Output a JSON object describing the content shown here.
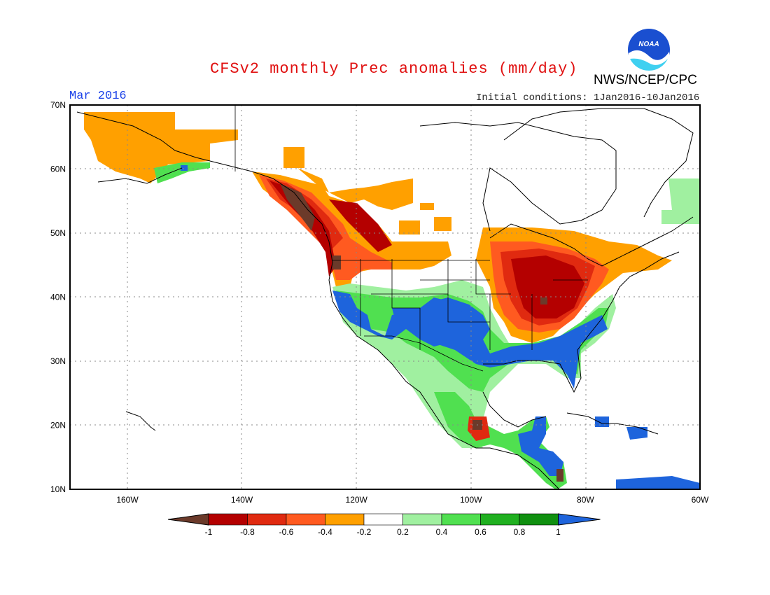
{
  "header": {
    "title": "CFSv2 monthly Prec anomalies (mm/day)",
    "agency": "NWS/NCEP/CPC",
    "month": "Mar 2016",
    "initial_conditions": "Initial conditions: 1Jan2016-10Jan2016",
    "logo_text": "NOAA"
  },
  "axes": {
    "lat_labels": [
      "70N",
      "60N",
      "50N",
      "40N",
      "30N",
      "20N",
      "10N"
    ],
    "lon_labels": [
      "160W",
      "140W",
      "120W",
      "100W",
      "80W",
      "60W"
    ]
  },
  "colorbar": {
    "labels": [
      "-1",
      "-0.8",
      "-0.6",
      "-0.4",
      "-0.2",
      "0.2",
      "0.4",
      "0.6",
      "0.8",
      "1"
    ],
    "colors": [
      "#6b3a2a",
      "#b40000",
      "#e02a10",
      "#ff5a20",
      "#ffa000",
      "#ffffff",
      "#a0f0a0",
      "#50e050",
      "#20b020",
      "#109010",
      "#1e64dc"
    ]
  },
  "map_regions": [
    {
      "name": "alaska-dry",
      "color": "#ffa000"
    },
    {
      "name": "pacific-nw-very-dry",
      "color": "#6b3a2a"
    },
    {
      "name": "great-lakes-dry",
      "color": "#b40000"
    },
    {
      "name": "southwest-wet",
      "color": "#1e64dc"
    },
    {
      "name": "southeast-wet",
      "color": "#1e64dc"
    },
    {
      "name": "mexico-wet",
      "color": "#50e050"
    }
  ]
}
